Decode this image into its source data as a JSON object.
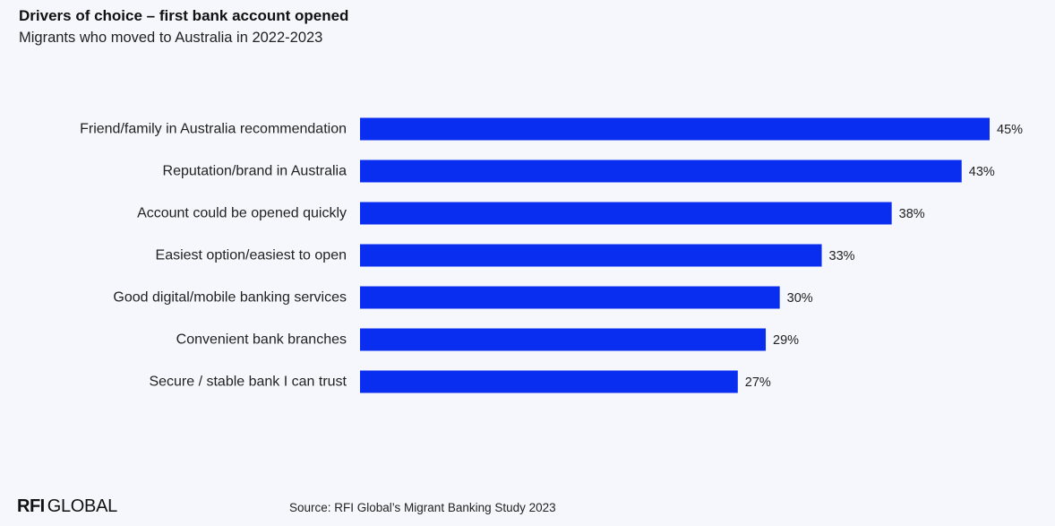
{
  "header": {
    "title": "Drivers of choice – first bank account opened",
    "subtitle": "Migrants who moved to Australia in 2022-2023"
  },
  "chart_data": {
    "type": "bar",
    "orientation": "horizontal",
    "categories": [
      "Friend/family in Australia recommendation",
      "Reputation/brand in Australia",
      "Account could be opened quickly",
      "Easiest option/easiest to open",
      "Good digital/mobile banking services",
      "Convenient bank branches",
      "Secure / stable bank I can trust"
    ],
    "values": [
      45,
      43,
      38,
      33,
      30,
      29,
      27
    ],
    "value_labels": [
      "45%",
      "43%",
      "38%",
      "33%",
      "30%",
      "29%",
      "27%"
    ],
    "unit": "%",
    "xlim": [
      0,
      45
    ],
    "grid": false,
    "legend": "none",
    "bar_color": "#0a2ef0"
  },
  "footer": {
    "logo_bold": "RFI",
    "logo_light": "GLOBAL",
    "source": "Source: RFI Global’s Migrant Banking Study 2023"
  }
}
